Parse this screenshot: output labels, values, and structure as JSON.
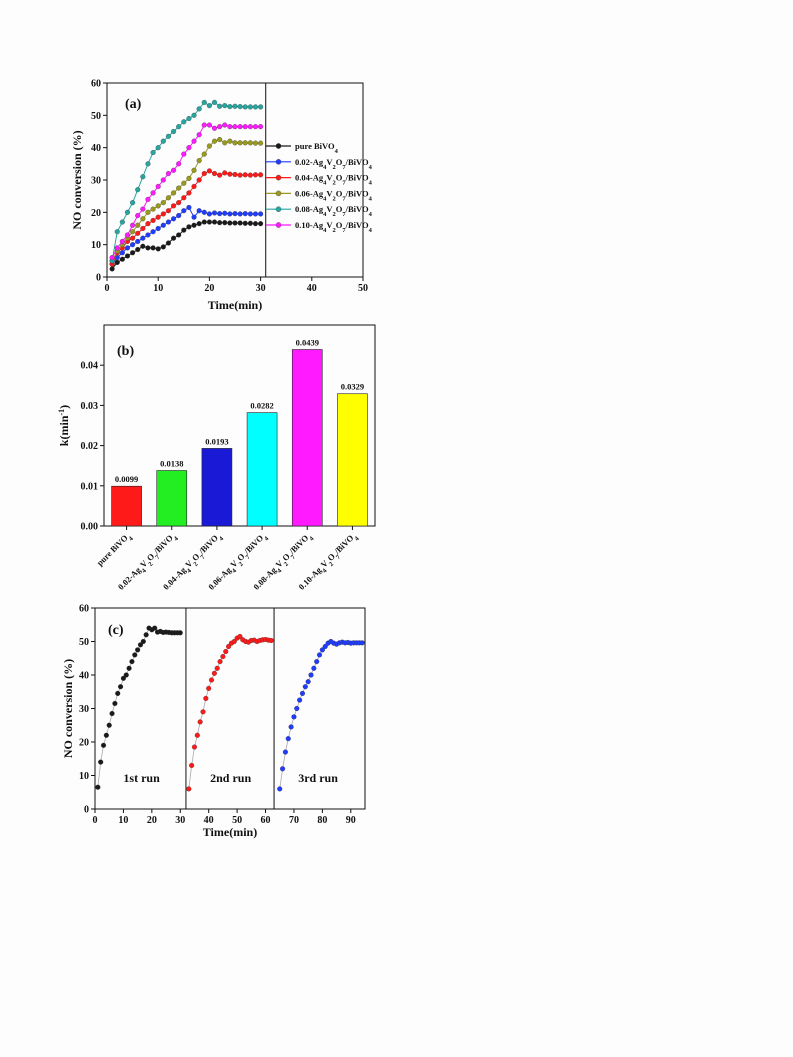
{
  "colors": {
    "black": "#1a1a1a",
    "blue": "#1f3cff",
    "red": "#ff1a1a",
    "olive": "#9a9a1e",
    "teal": "#27a6a0",
    "magenta": "#ff1aff",
    "green": "#22ee22",
    "navy": "#1a1ad6",
    "cyan": "#00ffff",
    "yellow": "#ffff00"
  },
  "chart_data": [
    {
      "panel": "(a)",
      "type": "line",
      "xlabel": "Time(min)",
      "ylabel": "NO conversion (%)",
      "xlim": [
        0,
        50
      ],
      "ylim": [
        0,
        60
      ],
      "xticks": [
        0,
        10,
        20,
        30,
        40,
        50
      ],
      "yticks": [
        0,
        10,
        20,
        30,
        40,
        50,
        60
      ],
      "divider_x": 31,
      "legend_placement": "right",
      "x": [
        1,
        2,
        3,
        4,
        5,
        6,
        7,
        8,
        9,
        10,
        11,
        12,
        13,
        14,
        15,
        16,
        17,
        18,
        19,
        20,
        21,
        22,
        23,
        24,
        25,
        26,
        27,
        28,
        29,
        30
      ],
      "series": [
        {
          "name": [
            "pure BiVO",
            "4"
          ],
          "color": "#1a1a1a",
          "values": [
            2.5,
            4.5,
            5.5,
            6.5,
            7.5,
            8.5,
            9.5,
            9,
            9,
            8.7,
            9.3,
            10.5,
            12,
            13,
            14.5,
            15.5,
            16,
            16.5,
            17,
            17,
            17,
            16.8,
            16.8,
            16.7,
            16.7,
            16.7,
            16.6,
            16.6,
            16.5,
            16.5
          ]
        },
        {
          "name": [
            "0.02-Ag",
            "4",
            "V",
            "2",
            "O",
            "7",
            "/BiVO",
            "4"
          ],
          "color": "#1f3cff",
          "values": [
            4,
            6,
            7.5,
            9,
            10,
            11,
            12,
            13,
            14,
            15,
            16,
            17,
            18,
            19,
            20.5,
            21.5,
            18.5,
            20.5,
            20,
            19.5,
            19.8,
            19.6,
            19.7,
            19.5,
            19.6,
            19.5,
            19.6,
            19.5,
            19.5,
            19.5
          ]
        },
        {
          "name": [
            "0.04-Ag",
            "4",
            "V",
            "2",
            "O",
            "7",
            "/BiVO",
            "4"
          ],
          "color": "#ff1a1a",
          "values": [
            4,
            7.5,
            9,
            11,
            12,
            13.5,
            15,
            16.5,
            17.5,
            18.5,
            19.5,
            20.5,
            22,
            23,
            24.5,
            26,
            28,
            30,
            32,
            32.8,
            32,
            31.5,
            32.2,
            31.8,
            31.7,
            31.5,
            31.6,
            31.5,
            31.6,
            31.6
          ]
        },
        {
          "name": [
            "0.06-Ag",
            "4",
            "V",
            "2",
            "O",
            "7",
            "/BiVO",
            "4"
          ],
          "color": "#9a9a1e",
          "values": [
            5,
            8,
            10,
            12,
            14,
            16,
            18,
            20,
            21,
            22,
            23,
            24.5,
            26,
            27.5,
            29,
            30.5,
            33,
            36,
            38,
            40.5,
            42,
            42.5,
            41.5,
            42,
            41.5,
            41.5,
            41.5,
            41.5,
            41.4,
            41.4
          ]
        },
        {
          "name": [
            "0.08-Ag",
            "4",
            "V",
            "2",
            "O",
            "7",
            "/BiVO",
            "4"
          ],
          "color": "#27a6a0",
          "values": [
            5,
            14,
            17,
            20,
            23,
            27,
            31,
            35,
            38.5,
            40,
            42,
            43.5,
            45,
            46.5,
            48,
            49,
            50,
            52,
            54,
            53,
            54,
            52.8,
            53,
            52.7,
            52.8,
            52.7,
            52.6,
            52.6,
            52.6,
            52.6
          ]
        },
        {
          "name": [
            "0.10-Ag",
            "4",
            "V",
            "2",
            "O",
            "7",
            "/BiVO",
            "4"
          ],
          "color": "#ff1aff",
          "values": [
            6,
            9,
            11,
            13,
            16,
            19,
            21,
            24,
            26,
            28,
            30,
            32,
            33,
            35,
            38,
            40,
            42,
            44,
            47,
            47,
            46,
            46.5,
            47,
            46.5,
            46.5,
            46.5,
            46.5,
            46.5,
            46.5,
            46.5
          ]
        }
      ]
    },
    {
      "panel": "(b)",
      "type": "bar",
      "ylabel": "k(min",
      "ylabel_sup": "-1",
      "ylabel_end": ")",
      "ylim": [
        0,
        0.05
      ],
      "yticks": [
        "0.00",
        "0.01",
        "0.02",
        "0.03",
        "0.04"
      ],
      "categories": [
        [
          "pure BiVO",
          "4"
        ],
        [
          "0.02-Ag",
          "4",
          "V",
          "2",
          "O",
          "7",
          "/BiVO",
          "4"
        ],
        [
          "0.04-Ag",
          "4",
          "V",
          "2",
          "O",
          "7",
          "/BiVO",
          "4"
        ],
        [
          "0.06-Ag",
          "4",
          "V",
          "2",
          "O",
          "7",
          "/BiVO",
          "4"
        ],
        [
          "0.08-Ag",
          "4",
          "V",
          "2",
          "O",
          "7",
          "/BiVO",
          "4"
        ],
        [
          "0.10-Ag",
          "4",
          "V",
          "2",
          "O",
          "7",
          "/BiVO",
          "4"
        ]
      ],
      "values": [
        0.0099,
        0.0138,
        0.0193,
        0.0282,
        0.0439,
        0.0329
      ],
      "labels": [
        "0.0099",
        "0.0138",
        "0.0193",
        "0.0282",
        "0.0439",
        "0.0329"
      ],
      "bar_colors": [
        "#ff1a1a",
        "#22ee22",
        "#1a1ad6",
        "#00ffff",
        "#ff1aff",
        "#ffff00"
      ]
    },
    {
      "panel": "(c)",
      "type": "line",
      "xlabel": "Time(min)",
      "ylabel": "NO conversion (%)",
      "xlim": [
        0,
        95
      ],
      "ylim": [
        0,
        60
      ],
      "xticks": [
        0,
        10,
        20,
        30,
        40,
        50,
        60,
        70,
        80,
        90
      ],
      "yticks": [
        0,
        10,
        20,
        30,
        40,
        50,
        60
      ],
      "dividers_x": [
        32,
        63
      ],
      "runs": [
        {
          "label": "1st run",
          "label_x": 10,
          "color": "#1a1a1a",
          "x": [
            1,
            2,
            3,
            4,
            5,
            6,
            7,
            8,
            9,
            10,
            11,
            12,
            13,
            14,
            15,
            16,
            17,
            18,
            19,
            20,
            21,
            22,
            23,
            24,
            25,
            26,
            27,
            28,
            29,
            30
          ],
          "values": [
            6.5,
            14,
            19,
            22,
            25,
            28.5,
            31.5,
            34.5,
            36.5,
            39,
            40,
            42,
            44,
            46,
            47.5,
            49,
            50,
            52,
            54,
            53.5,
            54,
            52.8,
            53,
            52.7,
            52.8,
            52.7,
            52.6,
            52.6,
            52.6,
            52.6
          ]
        },
        {
          "label": "2nd run",
          "label_x": 40.5,
          "color": "#ff1a1a",
          "x": [
            33,
            34,
            35,
            36,
            37,
            38,
            39,
            40,
            41,
            42,
            43,
            44,
            45,
            46,
            47,
            48,
            49,
            50,
            51,
            52,
            53,
            54,
            55,
            56,
            57,
            58,
            59,
            60,
            61,
            62
          ],
          "values": [
            6,
            13,
            18.5,
            22,
            26,
            29,
            33,
            36,
            38.5,
            40.5,
            42,
            44,
            45.5,
            47,
            48.5,
            49.5,
            50,
            51,
            51.5,
            50.5,
            50,
            49.8,
            50.3,
            50.4,
            50,
            50.3,
            50.5,
            50.6,
            50.4,
            50.3
          ]
        },
        {
          "label": "3rd run",
          "label_x": 71.5,
          "color": "#1f3cff",
          "x": [
            65,
            66,
            67,
            68,
            69,
            70,
            71,
            72,
            73,
            74,
            75,
            76,
            77,
            78,
            79,
            80,
            81,
            82,
            83,
            84,
            85,
            86,
            87,
            88,
            89,
            90,
            91,
            92,
            93,
            94
          ],
          "values": [
            6,
            12,
            17,
            21,
            24.5,
            27.5,
            30,
            32.5,
            34.5,
            36.5,
            38,
            40,
            42,
            44,
            46,
            47.5,
            48.5,
            49.5,
            50,
            49.5,
            49.2,
            49.6,
            49.8,
            49.6,
            49.7,
            49.5,
            49.6,
            49.6,
            49.6,
            49.6
          ]
        }
      ]
    }
  ]
}
